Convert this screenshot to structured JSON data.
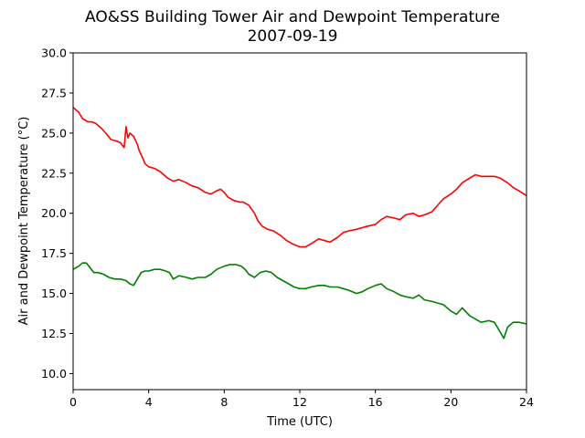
{
  "chart_data": {
    "type": "line",
    "title": "AO&SS Building Tower Air and Dewpoint Temperature",
    "subtitle": "2007-09-19",
    "xlabel": "Time (UTC)",
    "ylabel": "Air and Dewpoint Temperature (°C)",
    "xlim": [
      0,
      24
    ],
    "ylim": [
      9.0,
      30.0
    ],
    "xticks": [
      0,
      4,
      8,
      12,
      16,
      20,
      24
    ],
    "xtick_labels": [
      "0",
      "4",
      "8",
      "12",
      "16",
      "20",
      "24"
    ],
    "yticks": [
      10.0,
      12.5,
      15.0,
      17.5,
      20.0,
      22.5,
      25.0,
      27.5,
      30.0
    ],
    "ytick_labels": [
      "10.0",
      "12.5",
      "15.0",
      "17.5",
      "20.0",
      "22.5",
      "25.0",
      "27.5",
      "30.0"
    ],
    "grid": false,
    "legend": "none",
    "series": [
      {
        "color": "#ff0000",
        "x": [
          0,
          0.3,
          0.5,
          0.8,
          1.0,
          1.2,
          1.5,
          1.8,
          2.0,
          2.3,
          2.5,
          2.7,
          2.8,
          2.9,
          3.0,
          3.2,
          3.4,
          3.5,
          3.7,
          3.8,
          4.0,
          4.3,
          4.6,
          5.0,
          5.3,
          5.6,
          6.0,
          6.3,
          6.6,
          7.0,
          7.3,
          7.6,
          7.8,
          8.0,
          8.2,
          8.5,
          8.8,
          9.0,
          9.3,
          9.6,
          9.8,
          10.0,
          10.3,
          10.6,
          11.0,
          11.3,
          11.6,
          12.0,
          12.3,
          12.6,
          13.0,
          13.3,
          13.6,
          14.0,
          14.3,
          14.6,
          15.0,
          15.3,
          15.6,
          16.0,
          16.3,
          16.6,
          17.0,
          17.3,
          17.6,
          18.0,
          18.3,
          18.6,
          19.0,
          19.3,
          19.6,
          20.0,
          20.3,
          20.6,
          21.0,
          21.3,
          21.6,
          22.0,
          22.3,
          22.6,
          23.0,
          23.3,
          23.6,
          24.0
        ],
        "y": [
          26.6,
          26.3,
          25.9,
          25.7,
          25.7,
          25.6,
          25.3,
          24.9,
          24.6,
          24.5,
          24.4,
          24.1,
          25.4,
          24.7,
          25.0,
          24.8,
          24.3,
          23.9,
          23.4,
          23.1,
          22.9,
          22.8,
          22.6,
          22.2,
          22.0,
          22.1,
          21.9,
          21.7,
          21.6,
          21.3,
          21.2,
          21.4,
          21.5,
          21.3,
          21.0,
          20.8,
          20.7,
          20.7,
          20.5,
          20.0,
          19.5,
          19.2,
          19.0,
          18.9,
          18.6,
          18.3,
          18.1,
          17.9,
          17.9,
          18.1,
          18.4,
          18.3,
          18.2,
          18.5,
          18.8,
          18.9,
          19.0,
          19.1,
          19.2,
          19.3,
          19.6,
          19.8,
          19.7,
          19.6,
          19.9,
          20.0,
          19.8,
          19.9,
          20.1,
          20.5,
          20.9,
          21.2,
          21.5,
          21.9,
          22.2,
          22.4,
          22.3,
          22.3,
          22.3,
          22.2,
          21.9,
          21.6,
          21.4,
          21.1
        ]
      },
      {
        "color": "#008000",
        "x": [
          0,
          0.3,
          0.5,
          0.7,
          0.9,
          1.1,
          1.3,
          1.6,
          1.9,
          2.2,
          2.5,
          2.8,
          3.0,
          3.2,
          3.4,
          3.6,
          3.8,
          4.0,
          4.3,
          4.6,
          4.9,
          5.1,
          5.3,
          5.6,
          6.0,
          6.3,
          6.6,
          7.0,
          7.3,
          7.6,
          8.0,
          8.3,
          8.6,
          8.9,
          9.1,
          9.3,
          9.6,
          9.9,
          10.2,
          10.5,
          10.8,
          11.1,
          11.4,
          11.7,
          12.0,
          12.3,
          12.6,
          13.0,
          13.3,
          13.6,
          14.0,
          14.3,
          14.6,
          15.0,
          15.3,
          15.6,
          16.0,
          16.3,
          16.6,
          17.0,
          17.3,
          17.6,
          18.0,
          18.3,
          18.6,
          19.0,
          19.3,
          19.6,
          20.0,
          20.3,
          20.6,
          21.0,
          21.3,
          21.6,
          22.0,
          22.3,
          22.6,
          22.8,
          23.0,
          23.3,
          23.6,
          24.0
        ],
        "y": [
          16.5,
          16.7,
          16.9,
          16.9,
          16.6,
          16.3,
          16.3,
          16.2,
          16.0,
          15.9,
          15.9,
          15.8,
          15.6,
          15.5,
          15.9,
          16.3,
          16.4,
          16.4,
          16.5,
          16.5,
          16.4,
          16.3,
          15.9,
          16.1,
          16.0,
          15.9,
          16.0,
          16.0,
          16.2,
          16.5,
          16.7,
          16.8,
          16.8,
          16.7,
          16.5,
          16.2,
          16.0,
          16.3,
          16.4,
          16.3,
          16.0,
          15.8,
          15.6,
          15.4,
          15.3,
          15.3,
          15.4,
          15.5,
          15.5,
          15.4,
          15.4,
          15.3,
          15.2,
          15.0,
          15.1,
          15.3,
          15.5,
          15.6,
          15.3,
          15.1,
          14.9,
          14.8,
          14.7,
          14.9,
          14.6,
          14.5,
          14.4,
          14.3,
          13.9,
          13.7,
          14.1,
          13.6,
          13.4,
          13.2,
          13.3,
          13.2,
          12.6,
          12.2,
          12.9,
          13.2,
          13.2,
          13.1
        ]
      }
    ]
  }
}
